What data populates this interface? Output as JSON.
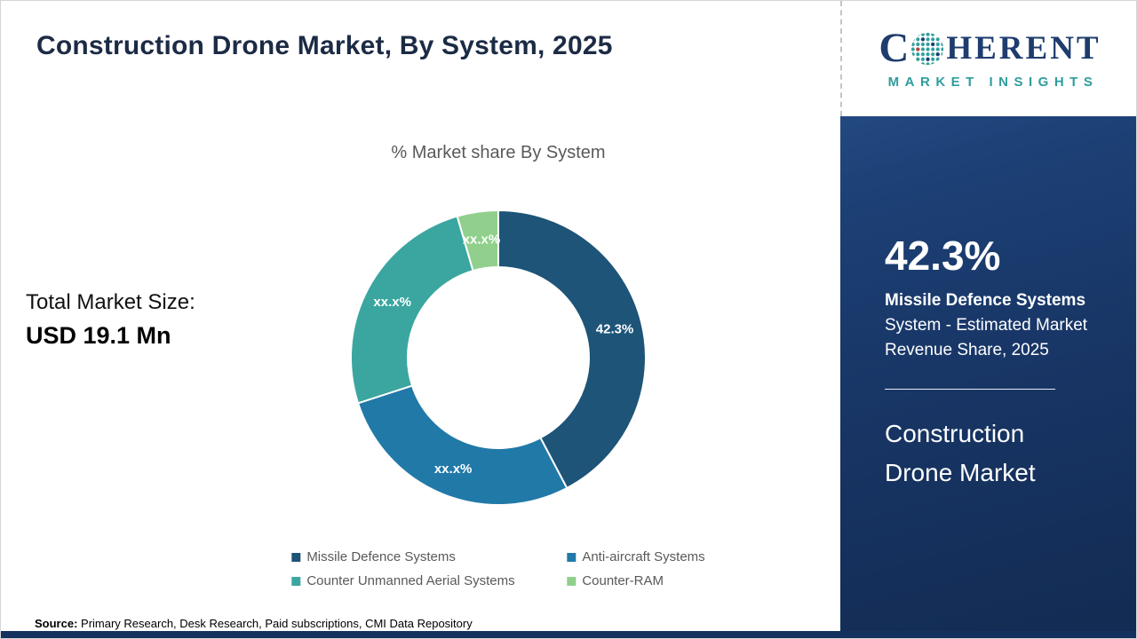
{
  "header": {
    "title": "Construction Drone Market, By System, 2025"
  },
  "brand": {
    "name_first_letter": "C",
    "name_rest": "HERENT",
    "tagline": "MARKET INSIGHTS"
  },
  "chart": {
    "subtitle": "% Market share By System",
    "total_market_label": "Total Market Size:",
    "total_market_value": "USD 19.1 Mn"
  },
  "chart_data": {
    "type": "pie",
    "donut": true,
    "title": "% Market share By System",
    "categories": [
      "Missile Defence Systems",
      "Anti-aircraft Systems",
      "Counter Unmanned Aerial Systems",
      "Counter-RAM"
    ],
    "values": [
      42.3,
      27.7,
      25.5,
      4.5
    ],
    "slice_labels": [
      "42.3%",
      "xx.x%",
      "xx.x%",
      "xx.x%"
    ],
    "colors": [
      "#1d5478",
      "#2179a8",
      "#3aa69f",
      "#90d08c"
    ],
    "legend_position": "bottom"
  },
  "sidebar": {
    "stat_value": "42.3%",
    "stat_segment": "Missile Defence Systems",
    "stat_description": "System - Estimated Market Revenue Share, 2025",
    "market_name": "Construction Drone Market"
  },
  "source": {
    "label": "Source:",
    "text": " Primary Research, Desk Research, Paid subscriptions, CMI Data Repository"
  }
}
